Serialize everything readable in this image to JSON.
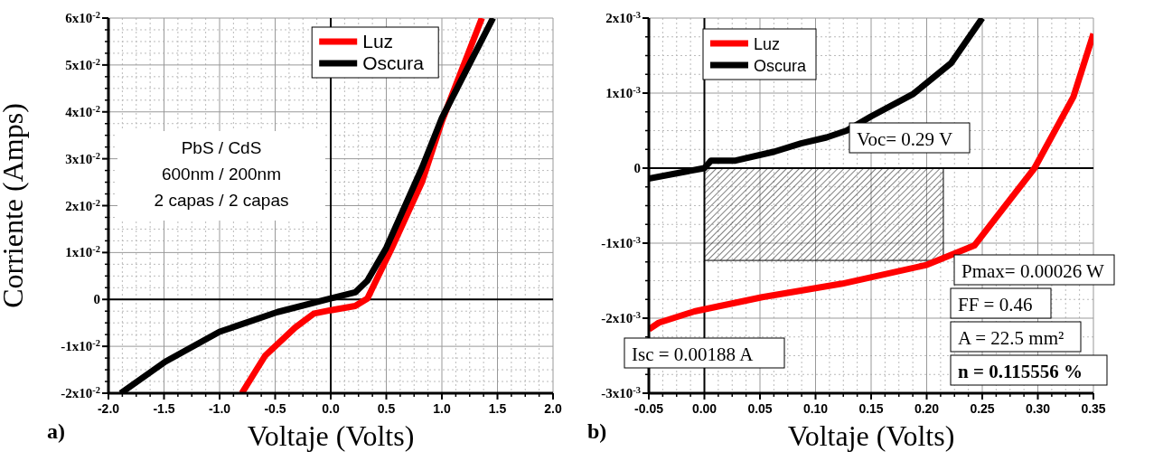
{
  "chart_data": [
    {
      "type": "line",
      "title": "a)",
      "xlabel": "Voltaje (Volts)",
      "ylabel": "Corriente (Amps)",
      "xlim": [
        -2.0,
        2.0
      ],
      "xticks": [
        {
          "value": -2,
          "label": "-2.0"
        },
        {
          "value": -1.5,
          "label": "-1.5"
        },
        {
          "value": -1,
          "label": "-1.0"
        },
        {
          "value": -0.5,
          "label": "-0.5"
        },
        {
          "value": 0,
          "label": "0.0"
        },
        {
          "value": 0.5,
          "label": "0.5"
        },
        {
          "value": 1,
          "label": "1.0"
        },
        {
          "value": 1.5,
          "label": "1.5"
        },
        {
          "value": 2,
          "label": "2.0"
        }
      ],
      "ylim": [
        -0.02,
        0.06
      ],
      "yticks": [
        {
          "value": -0.02,
          "label": "-2x10$^{-2}$"
        },
        {
          "value": -0.01,
          "label": "-1x10$^{-2}$"
        },
        0,
        {
          "value": 0.01,
          "label": "1x10$^{-2}$"
        },
        {
          "value": 0.02,
          "label": "2x10$^{-2}$"
        },
        {
          "value": 0.03,
          "label": "3x10$^{-2}$"
        },
        {
          "value": 0.04,
          "label": "4x10$^{-2}$"
        },
        {
          "value": 0.05,
          "label": "5x10$^{-2}$"
        },
        {
          "value": 0.06,
          "label": "6x10$^{-2}$"
        }
      ],
      "grid": true,
      "legend": "top",
      "annotations": [
        "PbS  /  CdS\n600nm  /  200nm\n2 capas  /  2 capas"
      ],
      "series": [
        {
          "name": "Luz",
          "color": "#ff0000",
          "x": [
            -0.8,
            -0.59,
            -0.32,
            -0.15,
            0,
            0.22,
            0.33,
            0.55,
            0.82,
            1.0,
            1.36
          ],
          "values": [
            -0.02,
            -0.012,
            -0.006,
            -0.003,
            -0.0023,
            -0.0014,
            0.0002,
            0.011,
            0.025,
            0.038,
            0.06
          ]
        },
        {
          "name": "Oscura",
          "color": "#000000",
          "x": [
            -1.89,
            -1.49,
            -1.0,
            -0.48,
            0,
            0.22,
            0.33,
            0.5,
            0.82,
            1.0,
            1.46
          ],
          "values": [
            -0.02,
            -0.0133,
            -0.0069,
            -0.0027,
            0.0002,
            0.0015,
            0.004,
            0.011,
            0.028,
            0.0387,
            0.06
          ]
        }
      ]
    },
    {
      "type": "line",
      "title": "b)",
      "xlabel": "Voltaje (Volts)",
      "xlim": [
        -0.05,
        0.35
      ],
      "xticks": [
        {
          "value": -0.05,
          "label": "-0.05"
        },
        {
          "value": 0,
          "label": "0.00"
        },
        {
          "value": 0.05,
          "label": "0.05"
        },
        {
          "value": 0.1,
          "label": "0.10"
        },
        {
          "value": 0.15,
          "label": "0.15"
        },
        {
          "value": 0.2,
          "label": "0.20"
        },
        {
          "value": 0.25,
          "label": "0.25"
        },
        {
          "value": 0.3,
          "label": "0.30"
        },
        {
          "value": 0.35,
          "label": "0.35"
        }
      ],
      "ylim": [
        -0.003,
        0.002
      ],
      "yticks": [
        {
          "value": -0.003,
          "label": "-3x10$^{-3}$"
        },
        {
          "value": -0.002,
          "label": "-2x10$^{-3}$"
        },
        {
          "value": -0.001,
          "label": "-1x10$^{-3}$"
        },
        0,
        {
          "value": 0.001,
          "label": "1x10$^{-3}$"
        },
        {
          "value": 0.002,
          "label": "2x10$^{-3}$"
        }
      ],
      "grid": true,
      "legend": "top left",
      "annotations": [
        "Voc= 0.29 V",
        "Isc = 0.00188 A",
        "Pmax= 0.00026 W",
        "FF = 0.46",
        "A = 22.5 mm²",
        "n = 0.115556 %"
      ],
      "series": [
        {
          "type": "area",
          "color": "#000000",
          "x": [
            0,
            0.215
          ],
          "values": [
            -0.00123,
            -0.00123
          ]
        },
        {
          "name": "Luz",
          "color": "#ff0000",
          "x": [
            -0.05,
            -0.041,
            -0.009,
            0.052,
            0.124,
            0.2,
            0.215,
            0.243,
            0.297,
            0.332,
            0.35
          ],
          "values": [
            -0.00215,
            -0.00206,
            -0.00191,
            -0.00172,
            -0.00154,
            -0.00129,
            -0.0012,
            -0.00103,
            0,
            0.00095,
            0.00179
          ]
        },
        {
          "name": "Oscura",
          "color": "#000000",
          "x": [
            -0.05,
            0,
            0.006,
            0.028,
            0.063,
            0.087,
            0.11,
            0.128,
            0.15,
            0.188,
            0.222,
            0.25
          ],
          "values": [
            -0.00014,
            0,
            0.0001,
            0.0001,
            0.00022,
            0.00033,
            0.00041,
            0.0005,
            0.00069,
            0.00099,
            0.0014,
            0.002
          ]
        }
      ]
    }
  ]
}
